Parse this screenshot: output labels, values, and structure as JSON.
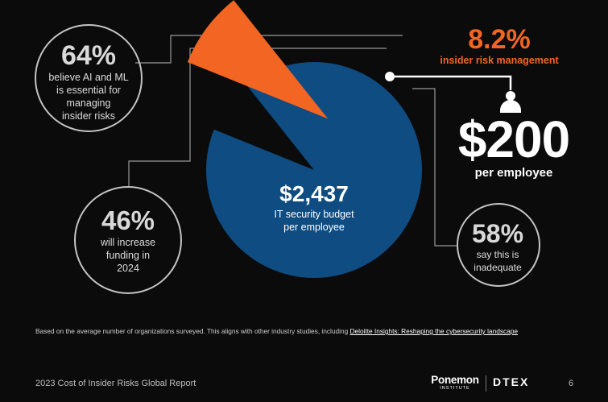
{
  "chart_data": {
    "type": "pie",
    "title": "",
    "series": [
      {
        "label": "IT security budget per employee",
        "value": 2437,
        "color": "#0f4c81"
      },
      {
        "label": "insider risk management",
        "value": 200,
        "percent": 8.2,
        "color": "#f26522"
      }
    ]
  },
  "pie_center": {
    "value": "$2,437",
    "line1": "IT security budget",
    "line2": "per employee"
  },
  "orange_callout": {
    "value": "8.2%",
    "label": "insider risk management"
  },
  "per_employee_callout": {
    "value": "$200",
    "label": "per employee"
  },
  "stats": {
    "ai_ml": {
      "value": "64%",
      "line1": "believe AI and ML",
      "line2": "is essential for",
      "line3": "managing",
      "line4": "insider risks"
    },
    "funding": {
      "value": "46%",
      "line1": "will increase",
      "line2": "funding in",
      "line3": "2024"
    },
    "inadequate": {
      "value": "58%",
      "line1": "say this is",
      "line2": "inadequate"
    }
  },
  "footnote": {
    "text": "Based on the average number of organizations surveyed. This aligns with other industry studies, including ",
    "link": "Deloitte Insights: Reshaping the cybersecurity landscape"
  },
  "footer": {
    "report_title": "2023 Cost of Insider Risks Global Report",
    "ponemon_name": "Ponemon",
    "ponemon_sub": "INSTITUTE",
    "dtex": "DTEX",
    "page_number": "6"
  },
  "colors": {
    "background": "#0b0b0b",
    "accent_orange": "#f26522",
    "pie_blue": "#0f4c81",
    "outline": "#bfbfbf"
  },
  "icons": {
    "person": "person-icon"
  }
}
